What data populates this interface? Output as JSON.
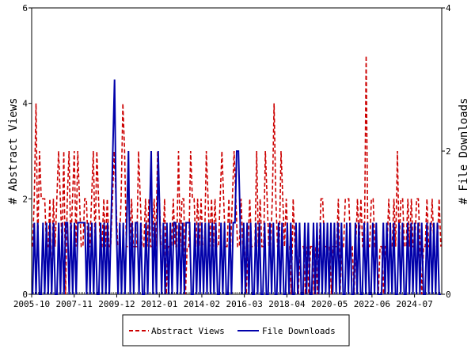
{
  "chart_data": {
    "type": "line",
    "title": "",
    "xlabel": "",
    "ylabel_left": "# Abstract Views",
    "ylabel_right": "# File Downloads",
    "x_tick_labels": [
      "2005-10",
      "2007-11",
      "2009-12",
      "2012-01",
      "2014-02",
      "2016-03",
      "2018-04",
      "2020-05",
      "2022-06",
      "2024-07"
    ],
    "x_range": [
      "2005-10",
      "2025-11"
    ],
    "ylim_left": [
      0,
      6
    ],
    "ylim_right": [
      0,
      4
    ],
    "yticks_left": [
      0,
      2,
      4,
      6
    ],
    "yticks_right": [
      0,
      2,
      4
    ],
    "legend_position": "bottom-center",
    "grid": false,
    "series": [
      {
        "name": "Abstract Views",
        "axis": "left",
        "color": "#cc0000",
        "style": "dashed",
        "values": [
          1,
          2,
          4,
          1,
          3,
          2,
          2,
          2,
          1,
          1,
          2,
          0,
          2,
          1,
          2,
          3,
          2,
          1,
          3,
          0,
          2,
          3,
          1,
          2,
          3,
          1,
          3,
          2,
          1,
          1,
          2,
          2,
          1,
          1,
          2,
          3,
          1,
          3,
          2,
          1,
          1,
          2,
          1,
          2,
          1,
          1,
          2,
          3,
          2,
          1,
          1,
          2,
          4,
          3,
          1,
          1,
          1,
          2,
          1,
          1,
          1,
          3,
          2,
          1,
          1,
          2,
          1,
          2,
          1,
          1,
          2,
          1,
          3,
          2,
          1,
          1,
          2,
          0,
          1,
          1,
          1,
          2,
          1,
          1,
          3,
          1,
          2,
          2,
          0,
          1,
          1,
          3,
          2,
          2,
          1,
          2,
          1,
          2,
          1,
          1,
          3,
          2,
          1,
          2,
          1,
          2,
          1,
          1,
          2,
          3,
          2,
          1,
          1,
          2,
          1,
          2,
          3,
          2,
          1,
          1,
          2,
          1,
          1,
          0,
          1,
          2,
          1,
          1,
          1,
          3,
          1,
          2,
          1,
          1,
          3,
          2,
          1,
          1,
          2,
          4,
          2,
          1,
          1,
          3,
          2,
          1,
          2,
          1,
          1,
          0,
          2,
          1,
          1,
          0,
          1,
          1,
          1,
          0,
          1,
          0,
          1,
          1,
          0,
          1,
          0,
          1,
          2,
          2,
          1,
          1,
          1,
          1,
          0,
          1,
          1,
          1,
          2,
          0,
          1,
          1,
          2,
          2,
          2,
          1,
          1,
          0,
          1,
          2,
          1,
          2,
          1,
          1,
          5,
          1,
          1,
          2,
          2,
          1,
          1,
          0,
          1,
          1,
          0,
          1,
          1,
          2,
          1,
          1,
          2,
          1,
          3,
          1,
          2,
          2,
          1,
          1,
          2,
          1,
          2,
          1,
          1,
          2,
          2,
          1,
          0,
          1,
          1,
          2,
          1,
          1,
          2,
          1,
          1,
          1,
          2,
          1
        ]
      },
      {
        "name": "File Downloads",
        "axis": "right",
        "color": "#0000aa",
        "style": "solid",
        "values": [
          0,
          1,
          0,
          1,
          0,
          0,
          1,
          0,
          1,
          0,
          1,
          0,
          1,
          0,
          0,
          1,
          0,
          1,
          0,
          1,
          1,
          0,
          1,
          0,
          1,
          0,
          1,
          1,
          1,
          1,
          1,
          0,
          1,
          0,
          1,
          0,
          1,
          0,
          0,
          1,
          0,
          1,
          0,
          1,
          0,
          1,
          2,
          3,
          1,
          0,
          1,
          0,
          1,
          0,
          1,
          2,
          0,
          1,
          0,
          1,
          1,
          0,
          1,
          0,
          0,
          1,
          0,
          1,
          2,
          0,
          1,
          0,
          2,
          1,
          0,
          1,
          0,
          1,
          0,
          1,
          0,
          1,
          1,
          0,
          1,
          0,
          1,
          0,
          1,
          1,
          1,
          0,
          0,
          1,
          0,
          1,
          0,
          1,
          0,
          1,
          0,
          1,
          0,
          1,
          0,
          1,
          0,
          0,
          1,
          0,
          1,
          0,
          0,
          1,
          0,
          1,
          1,
          2,
          2,
          1,
          0,
          1,
          0,
          1,
          0,
          1,
          0,
          0,
          1,
          0,
          1,
          0,
          0,
          1,
          0,
          0,
          1,
          0,
          1,
          0,
          0,
          1,
          0,
          1,
          0,
          0,
          1,
          0,
          1,
          0,
          0,
          1,
          0,
          1,
          0,
          0,
          1,
          0,
          1,
          0,
          0,
          1,
          0,
          1,
          0,
          1,
          0,
          1,
          0,
          1,
          0,
          1,
          0,
          1,
          0,
          1,
          0,
          1,
          0,
          0,
          1,
          0,
          1,
          0,
          0,
          1,
          0,
          1,
          0,
          0,
          1,
          0,
          1,
          0,
          0,
          1,
          0,
          1,
          0,
          0,
          0,
          1,
          0,
          1,
          0,
          1,
          0,
          1,
          0,
          0,
          1,
          0,
          1,
          0,
          0,
          1,
          0,
          1,
          0,
          1,
          0,
          1,
          0,
          1,
          0,
          0,
          1,
          0,
          1,
          0,
          1,
          0,
          1,
          0,
          0
        ]
      }
    ]
  }
}
